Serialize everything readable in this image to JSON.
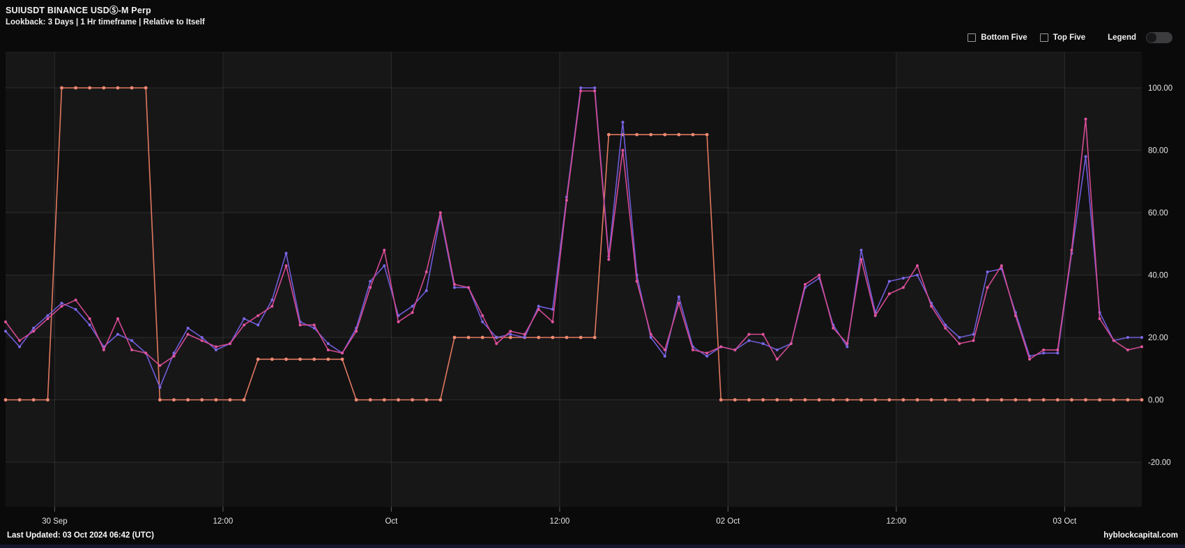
{
  "header": {
    "title": "SUIUSDT BINANCE USDⓈ-M Perp",
    "subtitle": "Lookback: 3 Days | 1 Hr timeframe | Relative to Itself"
  },
  "controls": {
    "bottom_five_label": "Bottom Five",
    "bottom_five_checked": false,
    "top_five_label": "Top Five",
    "top_five_checked": false,
    "legend_label": "Legend",
    "legend_on": false
  },
  "footer": {
    "last_updated": "Last Updated: 03 Oct 2024 06:42 (UTC)",
    "site": "hyblockcapital.com"
  },
  "colors": {
    "page_bg": "#0a0a0b",
    "plot_bg": "#121213",
    "grid": "rgba(255,255,255,0.10)",
    "axis_text": "#e6e6e6",
    "series_orange": "#e2795f",
    "series_orange_marker": "#f08a74",
    "series_purple": "#6f5cd9",
    "series_pink": "#d44a92"
  },
  "chart_data": {
    "type": "line",
    "title": "SUIUSDT BINANCE USDⓈ-M Perp",
    "subtitle": "Lookback: 3 Days | 1 Hr timeframe | Relative to Itself",
    "legend_visible": false,
    "grid": true,
    "x_axis": {
      "kind": "time",
      "points_interval": "1 hour",
      "start_hour_offset": -3.5,
      "num_points": 82,
      "tick_hours": [
        0,
        12,
        24,
        36,
        48,
        60,
        72
      ],
      "tick_labels": [
        "30 Sep",
        "12:00",
        "Oct",
        "12:00",
        "02 Oct",
        "12:00",
        "03 Oct"
      ]
    },
    "y_axis": {
      "side": "right",
      "tick_values": [
        100,
        80,
        60,
        40,
        20,
        0,
        -20
      ],
      "tick_labels": [
        "100.00",
        "80.00",
        "60.00",
        "40.00",
        "20.00",
        "0.00",
        "-20.00"
      ],
      "drawn_range": [
        -34,
        112
      ]
    },
    "series": [
      {
        "name": "orange-step-series",
        "color": "#e2795f",
        "marker_color": "#f08a74",
        "marker_radius": 2.4,
        "values": [
          0,
          0,
          0,
          0,
          100,
          100,
          100,
          100,
          100,
          100,
          100,
          0,
          0,
          0,
          0,
          0,
          0,
          0,
          13,
          13,
          13,
          13,
          13,
          13,
          13,
          0,
          0,
          0,
          0,
          0,
          0,
          0,
          20,
          20,
          20,
          20,
          20,
          20,
          20,
          20,
          20,
          20,
          20,
          85,
          85,
          85,
          85,
          85,
          85,
          85,
          85,
          0,
          0,
          0,
          0,
          0,
          0,
          0,
          0,
          0,
          0,
          0,
          0,
          0,
          0,
          0,
          0,
          0,
          0,
          0,
          0,
          0,
          0,
          0,
          0,
          0,
          0,
          0,
          0,
          0,
          0,
          0
        ]
      },
      {
        "name": "purple-series",
        "color": "#6f5cd9",
        "marker_color": "#7c69e6",
        "marker_radius": 2.0,
        "values": [
          22,
          17,
          23,
          27,
          31,
          29,
          24,
          17,
          21,
          19,
          15,
          4,
          15,
          23,
          20,
          16,
          18,
          26,
          24,
          32,
          47,
          25,
          23,
          18,
          15,
          23,
          38,
          43,
          27,
          30,
          35,
          59,
          36,
          36,
          25,
          20,
          21,
          20,
          30,
          29,
          65,
          100,
          100,
          46,
          89,
          40,
          20,
          14,
          33,
          17,
          14,
          17,
          16,
          19,
          18,
          16,
          18,
          36,
          39,
          24,
          17,
          48,
          28,
          38,
          39,
          40,
          31,
          24,
          20,
          21,
          41,
          42,
          28,
          14,
          15,
          15,
          47,
          78,
          28,
          19,
          20,
          20
        ]
      },
      {
        "name": "pink-series",
        "color": "#d44a92",
        "marker_color": "#e0559e",
        "marker_radius": 2.0,
        "values": [
          25,
          19,
          22,
          26,
          30,
          32,
          26,
          16,
          26,
          16,
          15,
          11,
          14,
          21,
          19,
          17,
          18,
          24,
          27,
          30,
          43,
          24,
          24,
          16,
          15,
          22,
          36,
          48,
          25,
          28,
          41,
          60,
          37,
          36,
          27,
          18,
          22,
          21,
          29,
          25,
          64,
          99,
          99,
          45,
          80,
          38,
          21,
          16,
          31,
          16,
          15,
          17,
          16,
          21,
          21,
          13,
          18,
          37,
          40,
          23,
          18,
          45,
          27,
          34,
          36,
          43,
          30,
          23,
          18,
          19,
          36,
          43,
          27,
          13,
          16,
          16,
          48,
          90,
          26,
          19,
          16,
          17
        ]
      }
    ]
  }
}
